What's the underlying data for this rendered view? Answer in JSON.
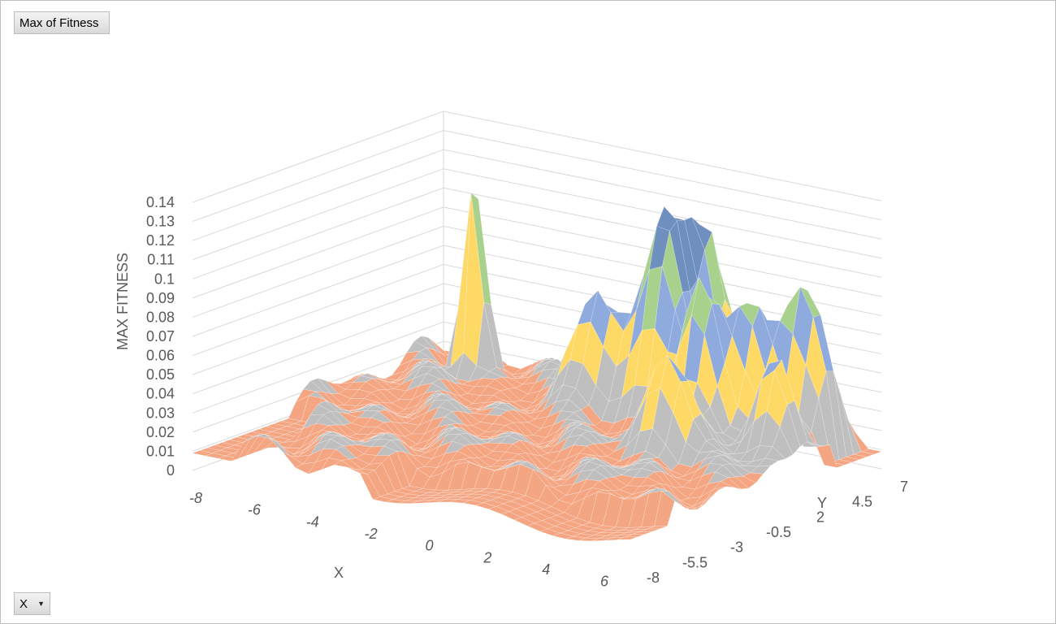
{
  "value_field_button": {
    "label": "Max of Fitness"
  },
  "axis_field_button": {
    "label": "X",
    "dropdown_icon": "caret-down-icon"
  },
  "chart_data": {
    "type": "surface",
    "zlabel": "MAX FITNESS",
    "xlabel": "X",
    "ylabel": "Y",
    "x_ticks": [
      "-8",
      "-6",
      "-4",
      "-2",
      "0",
      "2",
      "4",
      "6"
    ],
    "y_ticks": [
      "-8",
      "-5.5",
      "-3",
      "-0.5",
      "2",
      "4.5",
      "7"
    ],
    "z_ticks": [
      "0",
      "0.01",
      "0.02",
      "0.03",
      "0.04",
      "0.05",
      "0.06",
      "0.07",
      "0.08",
      "0.09",
      "0.1",
      "0.11",
      "0.12",
      "0.13",
      "0.14"
    ],
    "x_range": [
      -8,
      7
    ],
    "y_range": [
      -8,
      7
    ],
    "zlim": [
      0,
      0.14
    ],
    "legend": "none",
    "grid": true,
    "band_colors": [
      "#f4a582",
      "#bfbfbf",
      "#ffd966",
      "#8faadc",
      "#a9d18e",
      "#6f8fbf",
      "#a65a3f",
      "#5b9a5b"
    ],
    "peaks": [
      {
        "x": -5.8,
        "y": 5.0,
        "z": 0.14
      },
      {
        "x": 1.6,
        "y": 6.2,
        "z": 0.105
      },
      {
        "x": 0.8,
        "y": 5.0,
        "z": 0.1
      },
      {
        "x": 5.2,
        "y": 5.4,
        "z": 0.098
      },
      {
        "x": 1.2,
        "y": 4.0,
        "z": 0.092
      },
      {
        "x": 3.0,
        "y": 3.0,
        "z": 0.09
      },
      {
        "x": 4.0,
        "y": 4.2,
        "z": 0.085
      },
      {
        "x": -1.0,
        "y": 4.0,
        "z": 0.082
      },
      {
        "x": 3.5,
        "y": 0.5,
        "z": 0.08
      },
      {
        "x": 6.0,
        "y": 2.5,
        "z": 0.075
      }
    ]
  }
}
